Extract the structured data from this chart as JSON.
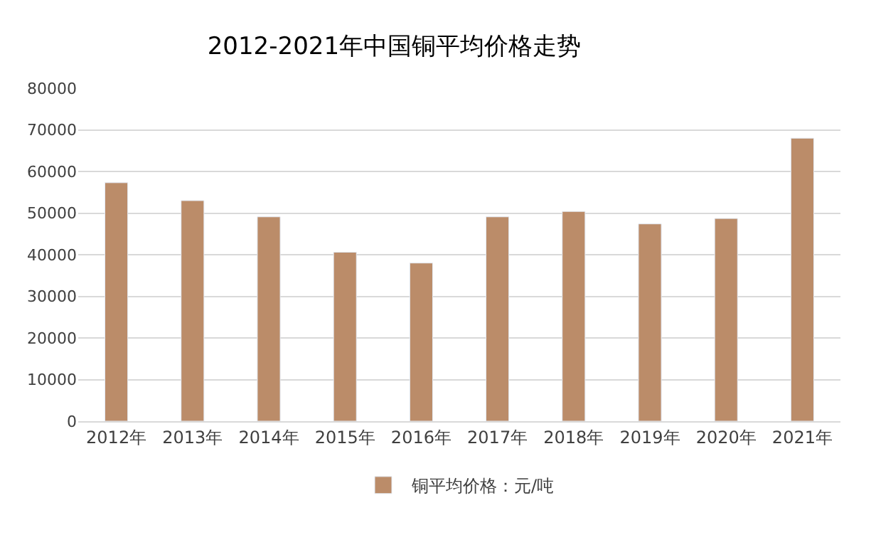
{
  "chart_data": {
    "type": "bar",
    "title": "2012-2021年中国铜平均价格走势",
    "categories": [
      "2012年",
      "2013年",
      "2014年",
      "2015年",
      "2016年",
      "2017年",
      "2018年",
      "2019年",
      "2020年",
      "2021年"
    ],
    "series": [
      {
        "name": "铜平均价格：元/吨",
        "color": "#bb8c69",
        "values": [
          57300,
          53000,
          49100,
          40600,
          38000,
          49100,
          50400,
          47400,
          48700,
          68000
        ]
      }
    ],
    "ylim": [
      0,
      80000
    ],
    "yticks": [
      0,
      10000,
      20000,
      30000,
      40000,
      50000,
      60000,
      70000,
      80000
    ],
    "grid": "y",
    "legend": "bottom"
  }
}
